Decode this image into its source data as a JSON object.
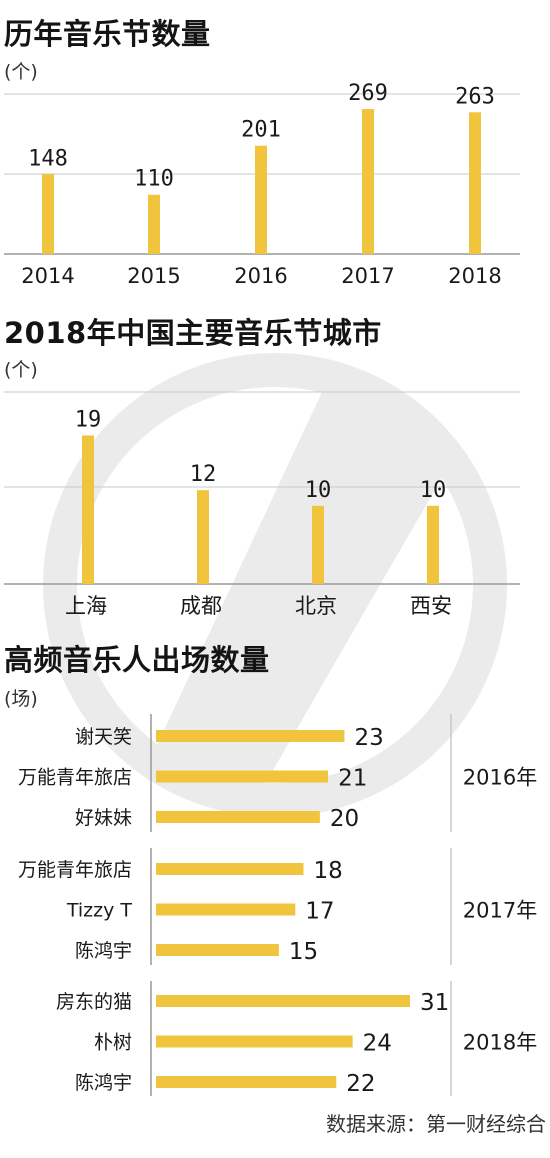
{
  "colors": {
    "bar": "#F0C43C",
    "grid": "#C8C8C8",
    "axis": "#999999",
    "watermark": "#EBEBEB"
  },
  "source": "数据来源：第一财经综合",
  "chart_data": [
    {
      "type": "bar",
      "title": "历年音乐节数量",
      "unit": "(个)",
      "categories": [
        "2014",
        "2015",
        "2016",
        "2017",
        "2018"
      ],
      "values": [
        148,
        110,
        201,
        269,
        263
      ],
      "ylim": [
        0,
        310
      ],
      "grid": true
    },
    {
      "type": "bar",
      "title": "2018年中国主要音乐节城市",
      "unit": "(个)",
      "categories": [
        "上海",
        "成都",
        "北京",
        "西安"
      ],
      "values": [
        19,
        12,
        10,
        10
      ],
      "ylim": [
        0,
        22
      ],
      "grid": true
    },
    {
      "type": "bar",
      "orientation": "horizontal",
      "title": "高频音乐人出场数量",
      "unit": "(场)",
      "xlim": [
        0,
        31
      ],
      "groups": [
        {
          "year": "2016年",
          "items": [
            {
              "name": "谢天笑",
              "value": 23
            },
            {
              "name": "万能青年旅店",
              "value": 21
            },
            {
              "name": "好妹妹",
              "value": 20
            }
          ]
        },
        {
          "year": "2017年",
          "items": [
            {
              "name": "万能青年旅店",
              "value": 18
            },
            {
              "name": "Tizzy T",
              "value": 17
            },
            {
              "name": "陈鸿宇",
              "value": 15
            }
          ]
        },
        {
          "year": "2018年",
          "items": [
            {
              "name": "房东的猫",
              "value": 31
            },
            {
              "name": "朴树",
              "value": 24
            },
            {
              "name": "陈鸿宇",
              "value": 22
            }
          ]
        }
      ]
    }
  ]
}
